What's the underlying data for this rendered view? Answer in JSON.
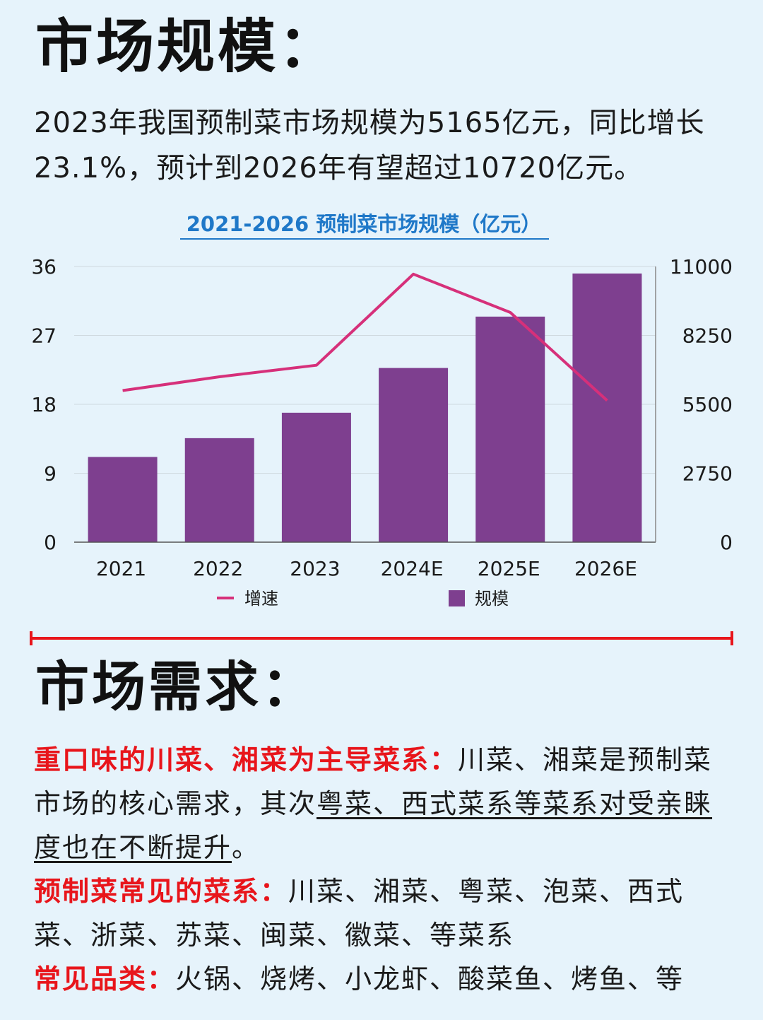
{
  "section1": {
    "title": "市场规模：",
    "intro": "2023年我国预制菜市场规模为5165亿元，同比增长23.1%，预计到2026年有望超过10720亿元。"
  },
  "chart_data": {
    "type": "bar",
    "title": "2021-2026 预制菜市场规模（亿元）",
    "categories": [
      "2021",
      "2022",
      "2023",
      "2024E",
      "2025E",
      "2026E"
    ],
    "series": [
      {
        "name": "规模",
        "type": "bar",
        "axis": "right",
        "values": [
          3400,
          4150,
          5165,
          6950,
          9000,
          10720
        ],
        "color": "#7e3f8f"
      },
      {
        "name": "增速",
        "type": "line",
        "axis": "left",
        "values": [
          19.8,
          21.6,
          23.1,
          35.0,
          30.0,
          18.5
        ],
        "color": "#d6307a"
      }
    ],
    "y_left": {
      "range": [
        0,
        36
      ],
      "ticks": [
        "0",
        "9",
        "18",
        "27",
        "36"
      ]
    },
    "y_right": {
      "range": [
        0,
        11000
      ],
      "ticks": [
        "0",
        "2750",
        "5500",
        "8250",
        "11000"
      ]
    },
    "grid": true,
    "legend_position": "bottom",
    "title_color": "#1f78c8"
  },
  "section2": {
    "title": "市场需求：",
    "p1_label": "重口味的川菜、湘菜为主导菜系：",
    "p1_text": "川菜、湘菜是预制菜市场的核心需求，其次",
    "p1_underline": "粤菜、西式菜系等菜系对受亲睐度也在不断提升",
    "p1_end": "。",
    "p2_label": "预制菜常见的菜系：",
    "p2_text": "川菜、湘菜、粤菜、泡菜、西式菜、浙菜、苏菜、闽菜、徽菜、等菜系",
    "p3_label": "常见品类：",
    "p3_text": "火锅、烧烤、小龙虾、酸菜鱼、烤鱼、等"
  },
  "colors": {
    "accent_red": "#e8151b",
    "background": "#e6f3fb"
  }
}
